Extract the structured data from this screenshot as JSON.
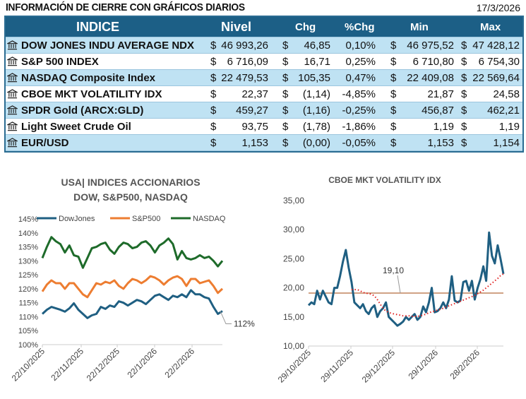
{
  "header": {
    "title": "INFORMACIÓN DE CIERRE CON GRÁFICOS DIARIOS",
    "date": "17/3/2026"
  },
  "table": {
    "columns": [
      "INDICE",
      "Nivel",
      "Chg",
      "%Chg",
      "Min",
      "Max"
    ],
    "currency_symbol": "$",
    "rows": [
      {
        "name": "DOW JONES INDU AVERAGE NDX",
        "nivel": "46 993,26",
        "chg": "46,85",
        "pct": "0,10%",
        "min": "46 975,52",
        "max": "47 428,12"
      },
      {
        "name": "S&P 500 INDEX",
        "nivel": "6 716,09",
        "chg": "16,71",
        "pct": "0,25%",
        "min": "6 710,80",
        "max": "6 754,30"
      },
      {
        "name": "NASDAQ Composite Index",
        "nivel": "22 479,53",
        "chg": "105,35",
        "pct": "0,47%",
        "min": "22 409,08",
        "max": "22 569,64"
      },
      {
        "name": "CBOE MKT VOLATILITY IDX",
        "nivel": "22,37",
        "chg": "(1,14)",
        "pct": "-4,85%",
        "min": "21,87",
        "max": "24,58"
      },
      {
        "name": "SPDR Gold (ARCX:GLD)",
        "nivel": "459,27",
        "chg": "(1,16)",
        "pct": "-0,25%",
        "min": "456,87",
        "max": "462,21"
      },
      {
        "name": "Light Sweet Crude Oil",
        "nivel": "93,75",
        "chg": "(1,78)",
        "pct": "-1,86%",
        "min": "1,19",
        "max": "1,19"
      },
      {
        "name": "EUR/USD",
        "nivel": "1,153",
        "chg": "(0,00)",
        "pct": "-0,05%",
        "min": "1,153",
        "max": "1,154"
      }
    ],
    "row_icon": "bank-icon",
    "colors": {
      "header": "#1c5f86",
      "alt_row": "#bfe2f3"
    }
  },
  "chart_data": [
    {
      "type": "line",
      "title": [
        "USA| INDICES ACCIONARIOS",
        "DOW, S&P500, NASDAQ"
      ],
      "ylim": [
        100,
        145
      ],
      "yticks": [
        "100%",
        "105%",
        "110%",
        "115%",
        "120%",
        "125%",
        "130%",
        "135%",
        "140%",
        "145%"
      ],
      "xticks": [
        "22/10/2025",
        "22/11/2025",
        "22/12/2025",
        "22/1/2026",
        "22/2/2026"
      ],
      "legend": "top",
      "grid": false,
      "series": [
        {
          "name": "DowJones",
          "color": "#1f5f82",
          "values": [
            111,
            112.5,
            113.5,
            113,
            112.5,
            111.8,
            113,
            114.8,
            112.5,
            111,
            109.5,
            110.5,
            111,
            113.5,
            112.8,
            114,
            113.5,
            115.5,
            115,
            114,
            115,
            116,
            115.5,
            114.5,
            116,
            117.5,
            118,
            117,
            116,
            117.5,
            117,
            118,
            117,
            119.5,
            118,
            118,
            117,
            116.5,
            113.5,
            111,
            112
          ]
        },
        {
          "name": "S&P500",
          "color": "#ed7d31",
          "values": [
            119,
            121.5,
            123,
            122,
            122,
            120,
            122,
            122,
            120,
            118,
            117,
            119.5,
            122,
            121.5,
            122.5,
            122,
            123,
            121,
            120,
            122,
            123.5,
            123,
            122,
            123,
            124.5,
            124,
            123,
            121.5,
            123,
            124,
            124.5,
            123.5,
            121,
            123.5,
            123.5,
            122,
            122.5,
            123,
            121,
            118.5,
            120
          ]
        },
        {
          "name": "NASDAQ",
          "color": "#1e6b2a",
          "values": [
            131,
            135,
            138.5,
            137,
            136,
            133,
            135.5,
            132,
            131.5,
            127.5,
            131,
            134.5,
            135,
            136,
            136.5,
            134,
            132.5,
            135,
            136.5,
            136,
            134.5,
            135,
            136.5,
            137,
            135.5,
            133,
            135.5,
            136.5,
            138,
            136,
            130.5,
            133.5,
            131,
            130.5,
            131,
            132,
            131,
            131.5,
            130,
            128,
            130
          ]
        }
      ],
      "annotation": "112%"
    },
    {
      "type": "line",
      "title": "CBOE MKT VOLATILITY IDX",
      "ylim": [
        10,
        35
      ],
      "yticks": [
        "10,00",
        "15,00",
        "20,00",
        "25,00",
        "30,00",
        "35,00"
      ],
      "xticks": [
        "29/10/2025",
        "29/11/2025",
        "29/12/2025",
        "29/1/2026",
        "28/2/2026"
      ],
      "grid": false,
      "series": [
        {
          "color": "#1f5f82",
          "values": [
            17,
            17.5,
            17.2,
            19.5,
            18,
            19.5,
            18.5,
            17.5,
            17.2,
            20,
            20,
            22,
            24.5,
            26.5,
            23.5,
            21,
            17.5,
            17,
            16.5,
            17.2,
            16,
            15.5,
            16.5,
            17,
            15,
            16,
            16.5,
            17.5,
            15,
            14.5,
            14,
            13.5,
            13.8,
            14.2,
            15,
            14.5,
            15,
            15.5,
            14.5,
            15,
            16.8,
            15.8,
            17.5,
            20,
            15.8,
            16,
            16.5,
            17.5,
            16.5,
            18,
            22,
            17.8,
            17.5,
            17.8,
            21,
            21.2,
            19.5,
            21.2,
            18,
            20,
            21.5,
            23.7,
            21.2,
            29.5,
            25.5,
            24.2,
            27.3,
            25,
            22.4
          ]
        },
        {
          "style": "trend-dotted",
          "color": "#e02020",
          "values": [
            null,
            null,
            null,
            null,
            null,
            null,
            null,
            null,
            null,
            null,
            null,
            null,
            null,
            null,
            null,
            19.7,
            19.7,
            19.7,
            19.5,
            19.2,
            19.1,
            19.0,
            18.9,
            18.6,
            18.0,
            17.2,
            16.5,
            16.0,
            15.8,
            15.6,
            15.5,
            15.4,
            15.3,
            15.2,
            15.2,
            15.2,
            15.1,
            15.1,
            15.1,
            15.2,
            15.3,
            15.5,
            15.7,
            15.9,
            16.0,
            16.2,
            16.3,
            16.5,
            16.7,
            16.9,
            17.1,
            17.3,
            17.5,
            17.7,
            17.9,
            18.1,
            18.3,
            18.5,
            18.7,
            19.0,
            19.3,
            19.6,
            20.0,
            20.4,
            20.8,
            21.2,
            21.6,
            22.1,
            22.4
          ]
        }
      ],
      "reference_line": {
        "value": 19.1,
        "label": "19,10",
        "color": "#b36a3c"
      }
    }
  ]
}
